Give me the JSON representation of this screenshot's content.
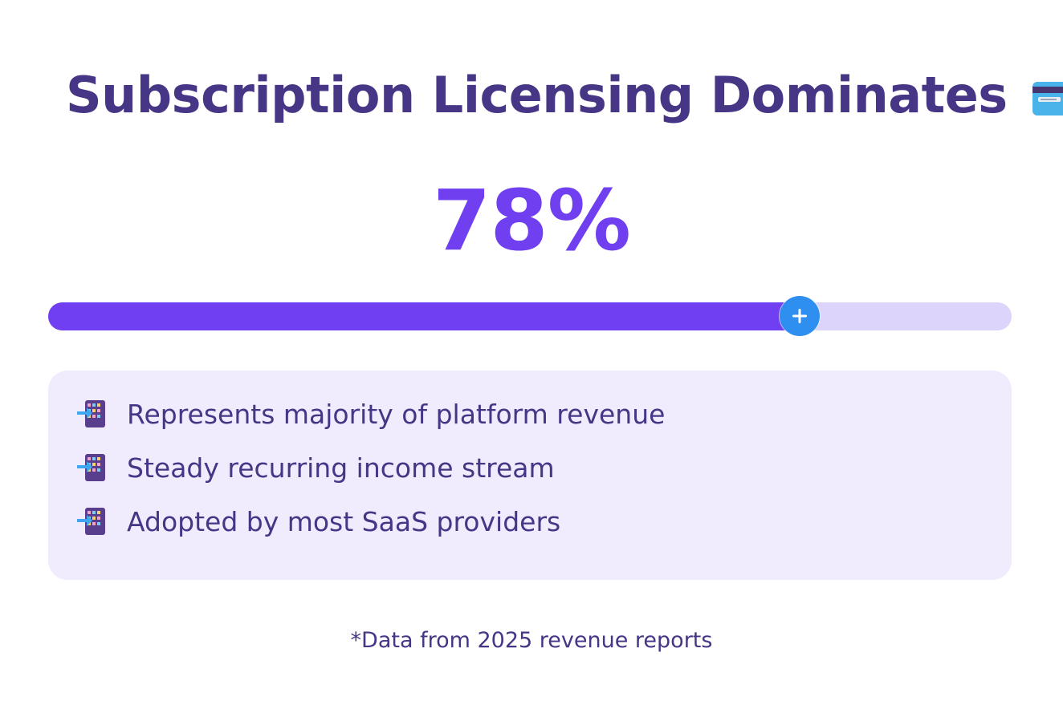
{
  "header": {
    "title": "Subscription Licensing Dominates",
    "title_icon": "credit-card-icon"
  },
  "stat": {
    "value_label": "78%",
    "value": 78
  },
  "progress": {
    "fraction": 0.78,
    "knob_icon": "plus-icon",
    "colors": {
      "fill": "#713ff2",
      "track": "#dcd4fb",
      "knob": "#2f8ff0"
    }
  },
  "points": {
    "icon": "inbox-tray-icon",
    "items": [
      {
        "text": "Represents majority of platform revenue"
      },
      {
        "text": "Steady recurring income stream"
      },
      {
        "text": "Adopted by most SaaS providers"
      }
    ]
  },
  "footnote": "*Data from 2025 revenue reports",
  "colors": {
    "title": "#473586",
    "accent": "#7040f0",
    "panel": "#f1ecfd"
  }
}
